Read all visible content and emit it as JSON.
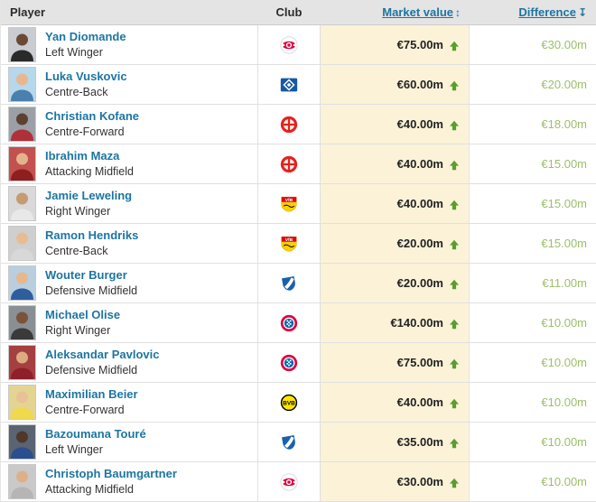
{
  "header": {
    "player_label": "Player",
    "club_label": "Club",
    "market_value_label": "Market value",
    "market_value_sort_icon": "↕",
    "difference_label": "Difference",
    "difference_sort_icon": "↧"
  },
  "colors": {
    "link_blue": "#1d75a2",
    "market_value_column_bg": "#fbf2d8",
    "up_arrow_green": "#5a9e2f",
    "difference_text_green": "#9cbf69",
    "header_bg": "#e4e4e4"
  },
  "table": {
    "rows": [
      {
        "name": "Yan Diomande",
        "position": "Left Winger",
        "club_icon": "rb-leipzig",
        "market_value": "€75.00m",
        "trend": "up",
        "difference": "€30.00m",
        "photo": {
          "bg": "#c9ccd0",
          "skin": "#6b4a35",
          "shirt": "#2a2a2a"
        }
      },
      {
        "name": "Luka Vuskovic",
        "position": "Centre-Back",
        "club_icon": "hamburger-sv",
        "market_value": "€60.00m",
        "trend": "up",
        "difference": "€20.00m",
        "photo": {
          "bg": "#b7d7ea",
          "skin": "#e8b78f",
          "shirt": "#4a7fae"
        }
      },
      {
        "name": "Christian Kofane",
        "position": "Centre-Forward",
        "club_icon": "bayer-leverkusen",
        "market_value": "€40.00m",
        "trend": "up",
        "difference": "€18.00m",
        "photo": {
          "bg": "#9aa0a6",
          "skin": "#5d4030",
          "shirt": "#b03039"
        }
      },
      {
        "name": "Ibrahim Maza",
        "position": "Attacking Midfield",
        "club_icon": "bayer-leverkusen",
        "market_value": "€40.00m",
        "trend": "up",
        "difference": "€15.00m",
        "photo": {
          "bg": "#c25150",
          "skin": "#e3b48c",
          "shirt": "#8f1f1f"
        }
      },
      {
        "name": "Jamie Leweling",
        "position": "Right Winger",
        "club_icon": "vfb-stuttgart",
        "market_value": "€40.00m",
        "trend": "up",
        "difference": "€15.00m",
        "photo": {
          "bg": "#d9d9d9",
          "skin": "#c79a70",
          "shirt": "#e8e8e8"
        }
      },
      {
        "name": "Ramon Hendriks",
        "position": "Centre-Back",
        "club_icon": "vfb-stuttgart",
        "market_value": "€20.00m",
        "trend": "up",
        "difference": "€15.00m",
        "photo": {
          "bg": "#cfcfcf",
          "skin": "#e6bd93",
          "shirt": "#d8d8d8"
        }
      },
      {
        "name": "Wouter Burger",
        "position": "Defensive Midfield",
        "club_icon": "hoffenheim",
        "market_value": "€20.00m",
        "trend": "up",
        "difference": "€11.00m",
        "photo": {
          "bg": "#b9cfe0",
          "skin": "#e6b88c",
          "shirt": "#2f5e9e"
        }
      },
      {
        "name": "Michael Olise",
        "position": "Right Winger",
        "club_icon": "bayern-munich",
        "market_value": "€140.00m",
        "trend": "up",
        "difference": "€10.00m",
        "photo": {
          "bg": "#8a8f94",
          "skin": "#7a5339",
          "shirt": "#3a3a3a"
        }
      },
      {
        "name": "Aleksandar Pavlovic",
        "position": "Defensive Midfield",
        "club_icon": "bayern-munich",
        "market_value": "€75.00m",
        "trend": "up",
        "difference": "€10.00m",
        "photo": {
          "bg": "#a4403f",
          "skin": "#dcab80",
          "shirt": "#8f1f2a"
        }
      },
      {
        "name": "Maximilian Beier",
        "position": "Centre-Forward",
        "club_icon": "borussia-dortmund",
        "market_value": "€40.00m",
        "trend": "up",
        "difference": "€10.00m",
        "photo": {
          "bg": "#e4d491",
          "skin": "#e9c199",
          "shirt": "#f0d94a"
        }
      },
      {
        "name": "Bazoumana Touré",
        "position": "Left Winger",
        "club_icon": "hoffenheim",
        "market_value": "€35.00m",
        "trend": "up",
        "difference": "€10.00m",
        "photo": {
          "bg": "#5a6472",
          "skin": "#4f382a",
          "shirt": "#2b4f8e"
        }
      },
      {
        "name": "Christoph Baumgartner",
        "position": "Attacking Midfield",
        "club_icon": "rb-leipzig",
        "market_value": "€30.00m",
        "trend": "up",
        "difference": "€10.00m",
        "photo": {
          "bg": "#c9c9c9",
          "skin": "#dfb088",
          "shirt": "#b5b5b5"
        }
      }
    ]
  }
}
